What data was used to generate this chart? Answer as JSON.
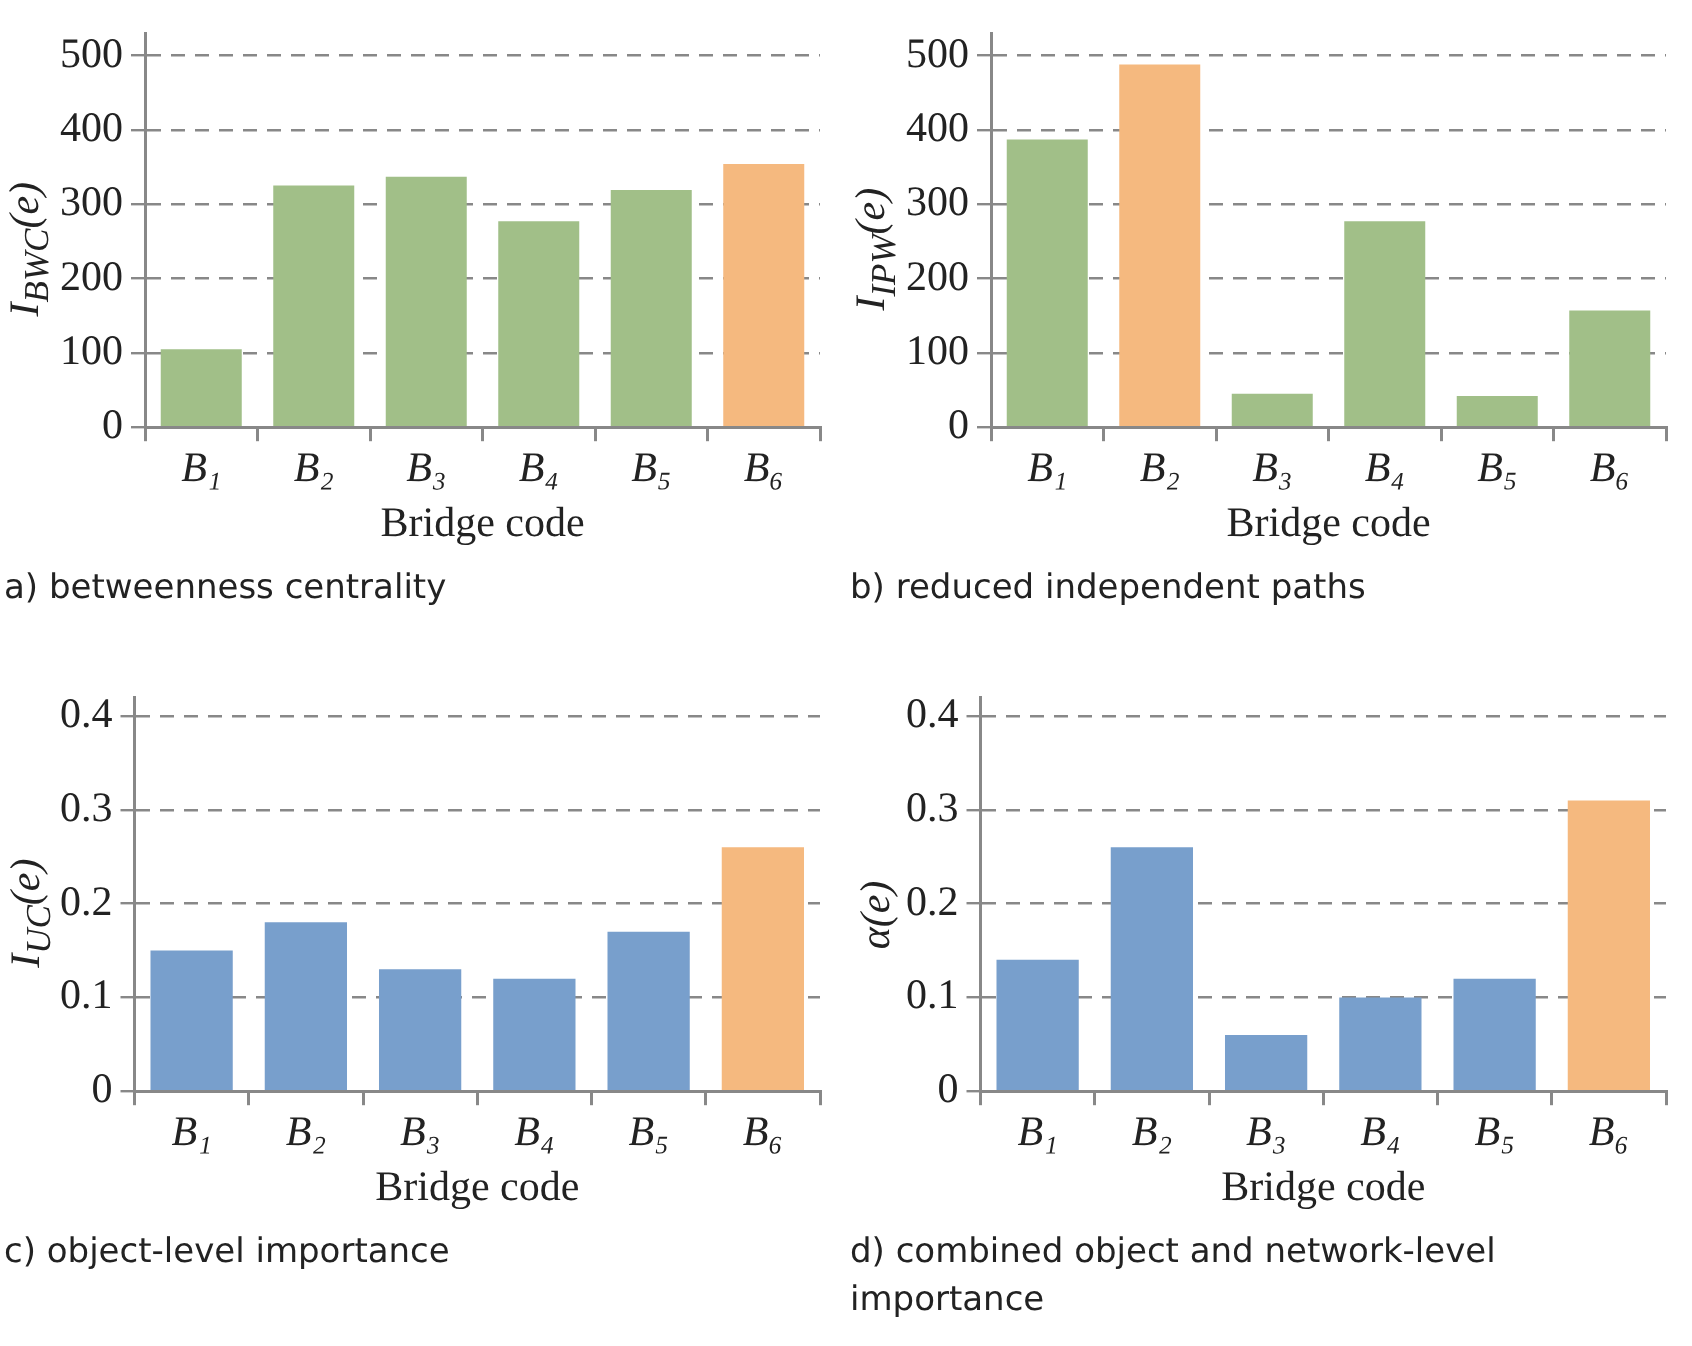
{
  "chart_data": [
    {
      "type": "bar",
      "title": "a) betweenness centrality",
      "xlabel": "Bridge code",
      "ylabel": "I$_{BWC}$(e)",
      "categories": [
        "B₁",
        "B₂",
        "B₃",
        "B₄",
        "B₅",
        "B₆"
      ],
      "values": [
        105,
        325,
        337,
        277,
        319,
        354
      ],
      "colors": [
        "#a1bf88",
        "#a1bf88",
        "#a1bf88",
        "#a1bf88",
        "#a1bf88",
        "#f5b97f"
      ],
      "ylim": [
        0,
        530
      ],
      "yticks": [
        0,
        100,
        200,
        300,
        400,
        500
      ],
      "grid": "y",
      "legend": false
    },
    {
      "type": "bar",
      "title": "b) reduced independent paths",
      "xlabel": "Bridge code",
      "ylabel": "I$_{IPW}$(e)",
      "categories": [
        "B₁",
        "B₂",
        "B₃",
        "B₄",
        "B₅",
        "B₆"
      ],
      "values": [
        387,
        488,
        45,
        277,
        42,
        157
      ],
      "colors": [
        "#a1bf88",
        "#f5b97f",
        "#a1bf88",
        "#a1bf88",
        "#a1bf88",
        "#a1bf88"
      ],
      "ylim": [
        0,
        530
      ],
      "yticks": [
        0,
        100,
        200,
        300,
        400,
        500
      ],
      "grid": "y",
      "legend": false
    },
    {
      "type": "bar",
      "title": "c) object-level importance",
      "xlabel": "Bridge code",
      "ylabel": "I$_{UC}$(e)",
      "categories": [
        "B₁",
        "B₂",
        "B₃",
        "B₄",
        "B₅",
        "B₆"
      ],
      "values": [
        0.15,
        0.18,
        0.13,
        0.12,
        0.17,
        0.26
      ],
      "colors": [
        "#789fcc",
        "#789fcc",
        "#789fcc",
        "#789fcc",
        "#789fcc",
        "#f5b97f"
      ],
      "ylim": [
        0,
        0.42
      ],
      "yticks": [
        0,
        0.1,
        0.2,
        0.3,
        0.4
      ],
      "grid": "y",
      "legend": false
    },
    {
      "type": "bar",
      "title": "d) combined object and network-level importance",
      "xlabel": "Bridge code",
      "ylabel": "α(e)",
      "categories": [
        "B₁",
        "B₂",
        "B₃",
        "B₄",
        "B₅",
        "B₆"
      ],
      "values": [
        0.14,
        0.26,
        0.06,
        0.1,
        0.12,
        0.31
      ],
      "colors": [
        "#789fcc",
        "#789fcc",
        "#789fcc",
        "#789fcc",
        "#789fcc",
        "#f5b97f"
      ],
      "ylim": [
        0,
        0.42
      ],
      "yticks": [
        0,
        0.1,
        0.2,
        0.3,
        0.4
      ],
      "grid": "y",
      "legend": false
    }
  ]
}
